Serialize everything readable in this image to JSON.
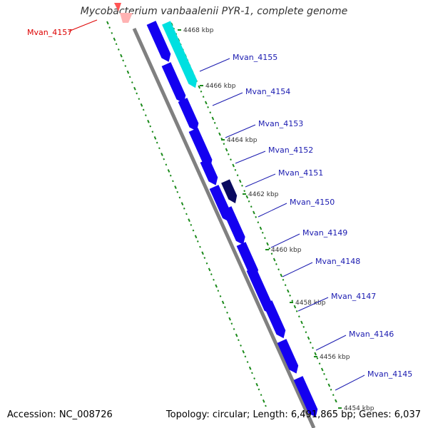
{
  "title": "Mycobacterium vanbaalenii PYR-1, complete genome",
  "footer": {
    "accession": "Accession: NC_008726",
    "topology": "Topology: circular; Length: 6,491,865 bp; Genes: 6,037"
  },
  "colors": {
    "forward_gene": "#1400f0",
    "selected_gene": "#00e0e0",
    "dark_gene": "#0a0a60",
    "reverse_gene": "#ffb3b3",
    "backbone": "#808080",
    "gc_dots": "#1a8a1a",
    "label_blue": "#1a1ab0",
    "label_red": "#dd0000"
  },
  "kbp_ticks": [
    "4468 kbp",
    "4466 kbp",
    "4464 kbp",
    "4462 kbp",
    "4460 kbp",
    "4458 kbp",
    "4456 kbp",
    "4454 kbp"
  ],
  "genes": [
    {
      "name": "Mvan_4157",
      "strand": "reverse"
    },
    {
      "name": "Mvan_4155",
      "strand": "forward",
      "highlight": "selected"
    },
    {
      "name": "Mvan_4154",
      "strand": "forward"
    },
    {
      "name": "Mvan_4153",
      "strand": "forward"
    },
    {
      "name": "Mvan_4152",
      "strand": "forward"
    },
    {
      "name": "Mvan_4151",
      "strand": "forward",
      "highlight": "dark"
    },
    {
      "name": "Mvan_4150",
      "strand": "forward"
    },
    {
      "name": "Mvan_4149",
      "strand": "forward"
    },
    {
      "name": "Mvan_4148",
      "strand": "forward"
    },
    {
      "name": "Mvan_4147",
      "strand": "forward"
    },
    {
      "name": "Mvan_4146",
      "strand": "forward"
    },
    {
      "name": "Mvan_4145",
      "strand": "forward"
    }
  ]
}
